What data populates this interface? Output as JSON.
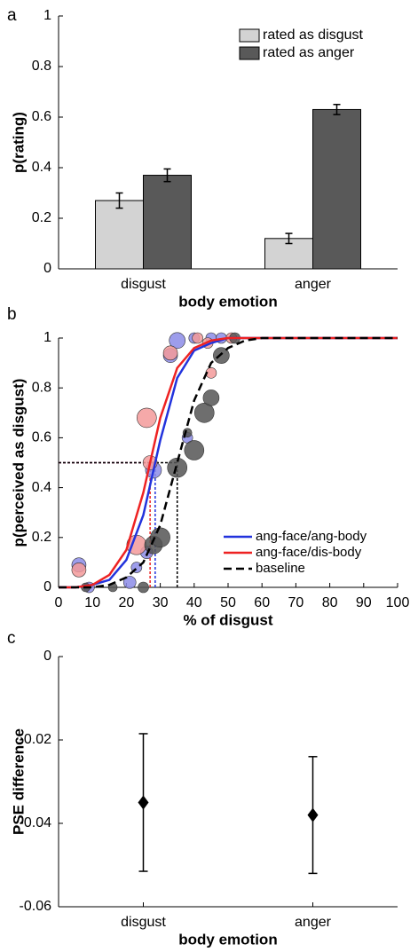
{
  "chart_data": [
    {
      "type": "bar",
      "panel_label": "a",
      "ylabel": "p(rating)",
      "xlabel": "body emotion",
      "categories": [
        "disgust",
        "anger"
      ],
      "series": [
        {
          "name": "rated as disgust",
          "color": "#d3d3d3",
          "values": [
            0.27,
            0.12
          ],
          "errors": [
            0.03,
            0.02
          ]
        },
        {
          "name": "rated as anger",
          "color": "#595959",
          "values": [
            0.37,
            0.63
          ],
          "errors": [
            0.025,
            0.02
          ]
        }
      ],
      "ylim": [
        0,
        1
      ],
      "yticks": [
        0,
        0.2,
        0.4,
        0.6,
        0.8,
        1
      ],
      "legend": "upper right"
    },
    {
      "type": "line",
      "panel_label": "b",
      "ylabel": "p(perceived as disgust)",
      "xlabel": "% of disgust",
      "x": [
        0,
        5,
        10,
        15,
        20,
        25,
        30,
        35,
        40,
        45,
        50,
        55,
        60,
        65,
        70,
        75,
        80,
        85,
        90,
        95,
        100
      ],
      "series": [
        {
          "name": "ang-face/ang-body",
          "color": "#2233dd",
          "dashed": false,
          "values": [
            0,
            0,
            0.01,
            0.03,
            0.11,
            0.29,
            0.59,
            0.84,
            0.95,
            0.98,
            1,
            1,
            1,
            1,
            1,
            1,
            1,
            1,
            1,
            1,
            1
          ]
        },
        {
          "name": "ang-face/dis-body",
          "color": "#ee2222",
          "dashed": false,
          "values": [
            0,
            0,
            0.01,
            0.05,
            0.15,
            0.38,
            0.68,
            0.88,
            0.96,
            0.99,
            1,
            1,
            1,
            1,
            1,
            1,
            1,
            1,
            1,
            1,
            1
          ]
        },
        {
          "name": "baseline",
          "color": "#000000",
          "dashed": true,
          "values": [
            0,
            0,
            0,
            0.01,
            0.04,
            0.1,
            0.25,
            0.5,
            0.75,
            0.9,
            0.96,
            0.99,
            1,
            1,
            1,
            1,
            1,
            1,
            1,
            1,
            1
          ]
        }
      ],
      "points": [
        {
          "color": "#8c8ce8",
          "x": [
            6,
            9,
            21,
            23,
            26,
            28,
            33,
            35,
            38,
            40,
            45,
            48
          ],
          "y": [
            0.09,
            0,
            0.02,
            0.08,
            0.14,
            0.47,
            0.93,
            0.99,
            0.6,
            1,
            1,
            1
          ],
          "sizes": [
            8,
            6,
            7,
            6,
            7,
            9,
            8,
            9,
            6,
            6,
            6,
            6
          ]
        },
        {
          "color": "#f39a9a",
          "x": [
            6,
            23,
            26,
            27,
            33,
            41,
            44,
            45,
            51
          ],
          "y": [
            0.07,
            0.17,
            0.68,
            0.5,
            0.94,
            1,
            0.98,
            0.86,
            1
          ],
          "sizes": [
            8,
            11,
            11,
            8,
            8,
            6,
            6,
            6,
            6
          ]
        },
        {
          "color": "#555555",
          "x": [
            8,
            16,
            25,
            28,
            30,
            35,
            38,
            40,
            43,
            45,
            48,
            52
          ],
          "y": [
            0,
            0,
            0,
            0.17,
            0.2,
            0.48,
            0.62,
            0.55,
            0.7,
            0.76,
            0.93,
            1
          ],
          "sizes": [
            5,
            5,
            6,
            10,
            11,
            11,
            5,
            11,
            11,
            9,
            9,
            6
          ]
        }
      ],
      "reference_lines": [
        {
          "color": "#2233dd",
          "x": 28.5,
          "y": 0.5
        },
        {
          "color": "#ee2222",
          "x": 27,
          "y": 0.5
        },
        {
          "color": "#000000",
          "x": 35,
          "y": 0.5
        }
      ],
      "xlim": [
        0,
        100
      ],
      "xticks": [
        0,
        10,
        20,
        30,
        40,
        50,
        60,
        70,
        80,
        90,
        100
      ],
      "ylim": [
        0,
        1
      ],
      "yticks": [
        0,
        0.2,
        0.4,
        0.6,
        0.8,
        1
      ],
      "legend": "lower right"
    },
    {
      "type": "scatter",
      "panel_label": "c",
      "ylabel": "PSE difference",
      "xlabel": "body emotion",
      "categories": [
        "disgust",
        "anger"
      ],
      "color": "#000000",
      "values": [
        -0.035,
        -0.038
      ],
      "errors": [
        0.0165,
        0.014
      ],
      "ylim": [
        -0.06,
        0
      ],
      "yticks": [
        -0.06,
        -0.04,
        -0.02,
        0
      ]
    }
  ]
}
